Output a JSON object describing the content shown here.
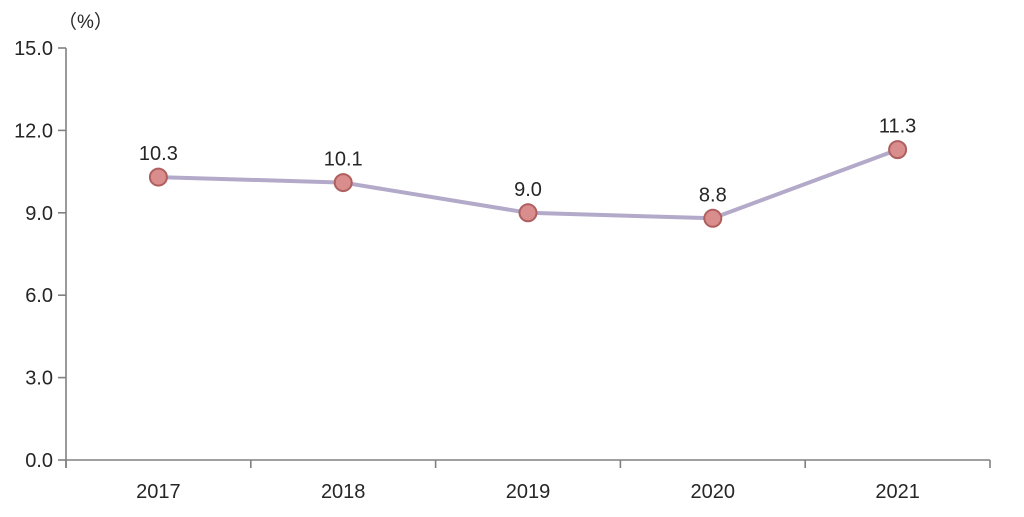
{
  "chart_data": {
    "type": "line",
    "title": "",
    "unit_label": "（%）",
    "categories": [
      "2017",
      "2018",
      "2019",
      "2020",
      "2021"
    ],
    "series": [
      {
        "name": "value",
        "values": [
          10.3,
          10.1,
          9.0,
          8.8,
          11.3
        ],
        "data_labels": [
          "10.3",
          "10.1",
          "9.0",
          "8.8",
          "11.3"
        ]
      }
    ],
    "xlabel": "",
    "ylabel": "(%)",
    "ylim": [
      0,
      15
    ],
    "ytick_interval": 3,
    "ytick_labels": [
      "0.0",
      "3.0",
      "6.0",
      "9.0",
      "12.0",
      "15.0"
    ],
    "grid": false,
    "legend_position": "none",
    "colors": {
      "line": "#b3a9c9",
      "marker_fill": "#d98d8d",
      "marker_stroke": "#b05f5f",
      "axis": "#808080",
      "text": "#262626"
    }
  }
}
